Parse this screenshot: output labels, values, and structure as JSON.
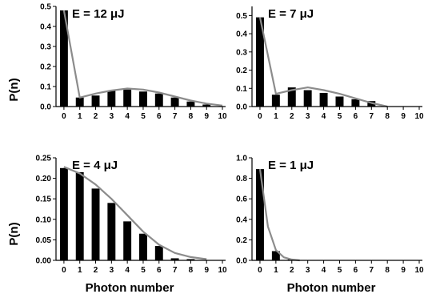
{
  "figure": {
    "ylabel": "P(n)",
    "xlabel": "Photon number"
  },
  "chart_data": [
    {
      "type": "bar",
      "title": "E = 12 μJ",
      "xlabel": "",
      "ylabel": "P(n)",
      "xticks": [
        "0",
        "1",
        "2",
        "3",
        "4",
        "5",
        "6",
        "7",
        "8",
        "9",
        "10"
      ],
      "yticks": [
        "0.0",
        "0.1",
        "0.2",
        "0.3",
        "0.4",
        "0.5"
      ],
      "xlim": [
        -0.5,
        10.2
      ],
      "ylim": [
        0,
        0.5
      ],
      "categories": [
        0,
        1,
        2,
        3,
        4,
        5,
        6,
        7,
        8,
        9
      ],
      "values": [
        0.48,
        0.045,
        0.055,
        0.08,
        0.085,
        0.075,
        0.065,
        0.045,
        0.025,
        0.01
      ],
      "fit": {
        "x": [
          0,
          1,
          2,
          3,
          4,
          5,
          6,
          7,
          8,
          9,
          10
        ],
        "y": [
          0.48,
          0.045,
          0.065,
          0.08,
          0.09,
          0.085,
          0.07,
          0.05,
          0.03,
          0.015,
          0.005
        ]
      },
      "colors": {
        "bars": "#000000",
        "fit": "#8c8c8c"
      }
    },
    {
      "type": "bar",
      "title": "E = 7 μJ",
      "xlabel": "",
      "ylabel": "",
      "xticks": [
        "0",
        "1",
        "2",
        "3",
        "4",
        "5",
        "6",
        "7",
        "8",
        "9",
        "10"
      ],
      "yticks": [
        "0.0",
        "0.1",
        "0.2",
        "0.3",
        "0.4",
        "0.5"
      ],
      "xlim": [
        -0.5,
        10.2
      ],
      "ylim": [
        0,
        0.55
      ],
      "categories": [
        0,
        1,
        2,
        3,
        4,
        5,
        6,
        7
      ],
      "values": [
        0.49,
        0.065,
        0.105,
        0.09,
        0.075,
        0.055,
        0.04,
        0.03
      ],
      "fit": {
        "x": [
          0,
          1,
          2,
          3,
          4,
          5,
          6,
          7,
          8
        ],
        "y": [
          0.49,
          0.07,
          0.09,
          0.105,
          0.09,
          0.07,
          0.045,
          0.02,
          0.0
        ]
      },
      "colors": {
        "bars": "#000000",
        "fit": "#8c8c8c"
      }
    },
    {
      "type": "bar",
      "title": "E = 4 μJ",
      "xlabel": "Photon number",
      "ylabel": "P(n)",
      "xticks": [
        "0",
        "1",
        "2",
        "3",
        "4",
        "5",
        "6",
        "7",
        "8",
        "9",
        "10"
      ],
      "yticks": [
        "0.00",
        "0.05",
        "0.10",
        "0.15",
        "0.20",
        "0.25"
      ],
      "xlim": [
        -0.5,
        10.2
      ],
      "ylim": [
        0,
        0.25
      ],
      "categories": [
        0,
        1,
        2,
        3,
        4,
        5,
        6,
        7,
        8
      ],
      "values": [
        0.225,
        0.215,
        0.175,
        0.14,
        0.095,
        0.065,
        0.035,
        0.005,
        0.003
      ],
      "fit": {
        "x": [
          0,
          1,
          2,
          3,
          4,
          5,
          6,
          7,
          8,
          9
        ],
        "y": [
          0.228,
          0.212,
          0.185,
          0.15,
          0.11,
          0.07,
          0.038,
          0.018,
          0.008,
          0.003
        ]
      },
      "colors": {
        "bars": "#000000",
        "fit": "#8c8c8c"
      }
    },
    {
      "type": "bar",
      "title": "E = 1 μJ",
      "xlabel": "Photon number",
      "ylabel": "",
      "xticks": [
        "0",
        "1",
        "2",
        "3",
        "4",
        "5",
        "6",
        "7",
        "8",
        "9",
        "10"
      ],
      "yticks": [
        "0.0",
        "0.2",
        "0.4",
        "0.6",
        "0.8",
        "1.0"
      ],
      "xlim": [
        -0.5,
        10.2
      ],
      "ylim": [
        0,
        1.0
      ],
      "categories": [
        0,
        1,
        2
      ],
      "values": [
        0.89,
        0.09,
        0.01
      ],
      "fit": {
        "x": [
          0,
          0.5,
          1,
          1.5,
          2,
          2.5
        ],
        "y": [
          0.89,
          0.33,
          0.1,
          0.03,
          0.008,
          0.0
        ]
      },
      "colors": {
        "bars": "#000000",
        "fit": "#8c8c8c"
      }
    }
  ]
}
